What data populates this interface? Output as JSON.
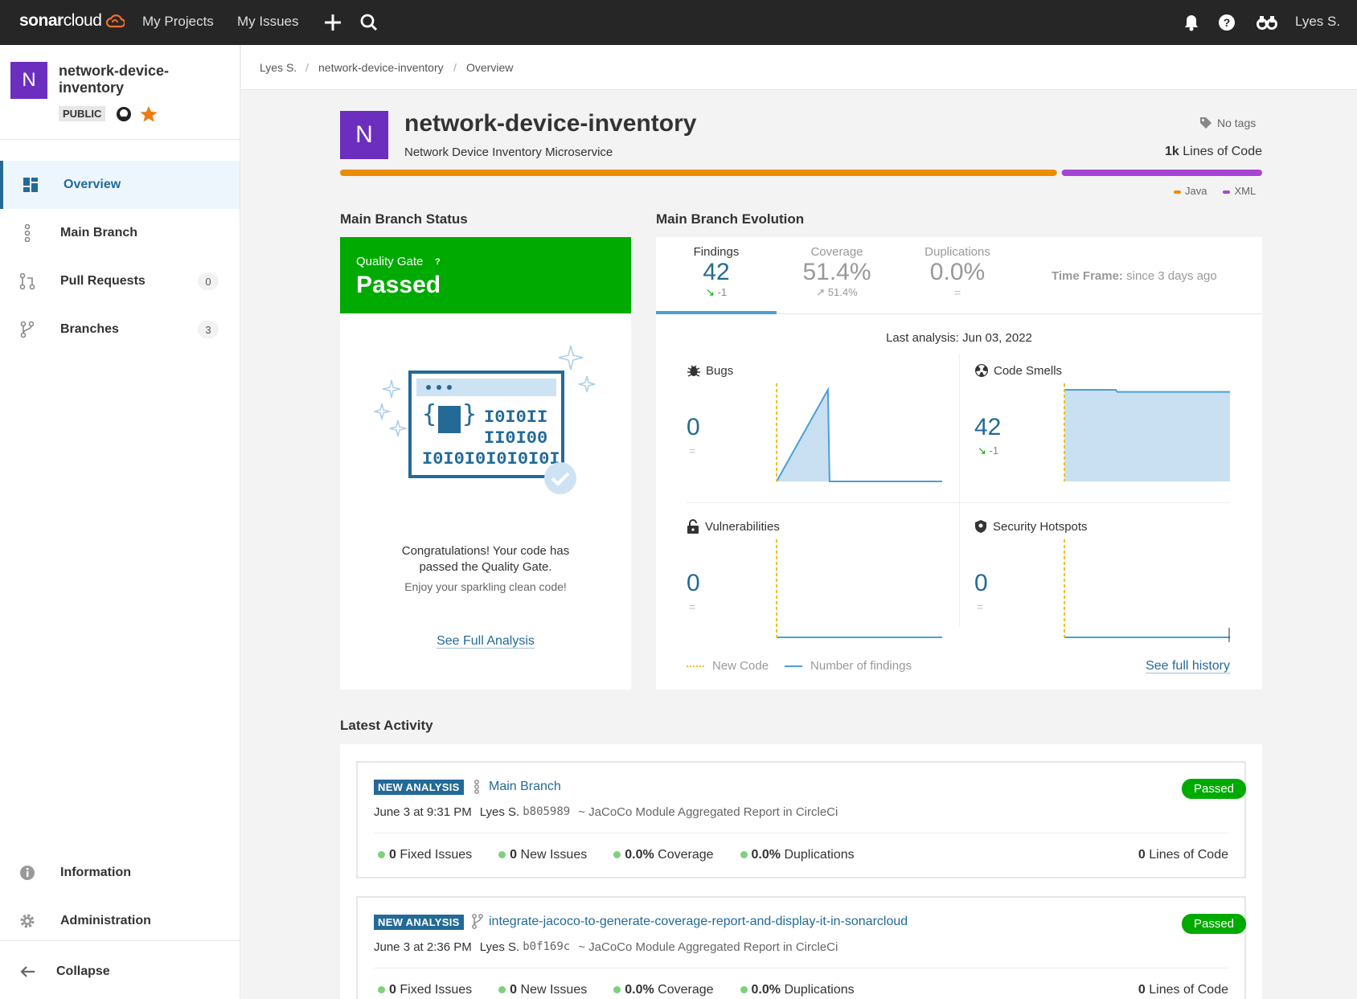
{
  "topbar": {
    "logo_prefix": "sonar",
    "logo_suffix": "cloud",
    "my_projects": "My Projects",
    "my_issues": "My Issues",
    "user": "Lyes S."
  },
  "sidebar": {
    "project_initial": "N",
    "project_name_line1": "network-device-",
    "project_name_line2": "inventory",
    "visibility": "PUBLIC",
    "items": [
      {
        "label": "Overview"
      },
      {
        "label": "Main Branch"
      },
      {
        "label": "Pull Requests",
        "count": "0"
      },
      {
        "label": "Branches",
        "count": "3"
      }
    ],
    "information": "Information",
    "administration": "Administration",
    "collapse": "Collapse"
  },
  "breadcrumb": {
    "user": "Lyes S.",
    "project": "network-device-inventory",
    "page": "Overview",
    "sep": "/"
  },
  "header": {
    "initial": "N",
    "title": "network-device-inventory",
    "description": "Network Device Inventory Microservice",
    "tags": "No tags",
    "loc_value": "1k",
    "loc_label": "Lines of Code",
    "languages": [
      {
        "name": "Java",
        "color": "#ed8c00",
        "share": 0.78
      },
      {
        "name": "XML",
        "color": "#a645d5",
        "share": 0.22
      }
    ]
  },
  "status": {
    "section_title": "Main Branch Status",
    "gate_label": "Quality Gate",
    "gate_help": "?",
    "gate_status": "Passed",
    "congrats_line1": "Congratulations! Your code has",
    "congrats_line2": "passed the Quality Gate.",
    "enjoy": "Enjoy your sparkling clean code!",
    "full_analysis": "See Full Analysis",
    "illustration_binary": [
      "I0I0II",
      "II0I00",
      "I0I0I0I0I0I0I"
    ]
  },
  "evolution": {
    "section_title": "Main Branch Evolution",
    "tabs": [
      {
        "label": "Findings",
        "value": "42",
        "delta": "-1"
      },
      {
        "label": "Coverage",
        "value": "51.4%",
        "delta": "51.4%"
      },
      {
        "label": "Duplications",
        "value": "0.0%",
        "delta": "="
      }
    ],
    "timeframe_label": "Time Frame:",
    "timeframe_value": "since 3 days ago",
    "last_analysis": "Last analysis: Jun 03, 2022",
    "metrics": [
      {
        "label": "Bugs",
        "value": "0",
        "delta": "=",
        "series": [
          0,
          1,
          0,
          0
        ]
      },
      {
        "label": "Code Smells",
        "value": "42",
        "delta": "-1",
        "series": [
          43,
          43,
          42,
          42
        ]
      },
      {
        "label": "Vulnerabilities",
        "value": "0",
        "delta": "=",
        "series": [
          0,
          0,
          0,
          0
        ]
      },
      {
        "label": "Security Hotspots",
        "value": "0",
        "delta": "=",
        "series": [
          0,
          0,
          0,
          0
        ]
      }
    ],
    "legend_new_code": "New Code",
    "legend_findings": "Number of findings",
    "full_history": "See full history"
  },
  "activity": {
    "section_title": "Latest Activity",
    "entries": [
      {
        "tag": "NEW ANALYSIS",
        "branch": "Main Branch",
        "status": "Passed",
        "date": "June 3 at 9:31 PM",
        "author": "Lyes S.",
        "hash": "b805989",
        "message": "~ JaCoCo Module Aggregated Report in CircleCi",
        "fixed": "0",
        "fixed_label": "Fixed Issues",
        "new": "0",
        "new_label": "New Issues",
        "coverage": "0.0%",
        "coverage_label": "Coverage",
        "dup": "0.0%",
        "dup_label": "Duplications",
        "loc": "0",
        "loc_label": "Lines of Code"
      },
      {
        "tag": "NEW ANALYSIS",
        "branch": "integrate-jacoco-to-generate-coverage-report-and-display-it-in-sonarcloud",
        "status": "Passed",
        "date": "June 3 at 2:36 PM",
        "author": "Lyes S.",
        "hash": "b0f169c",
        "message": "~ JaCoCo Module Aggregated Report in CircleCi",
        "fixed": "0",
        "fixed_label": "Fixed Issues",
        "new": "0",
        "new_label": "New Issues",
        "coverage": "0.0%",
        "coverage_label": "Coverage",
        "dup": "0.0%",
        "dup_label": "Duplications",
        "loc": "0",
        "loc_label": "Lines of Code"
      }
    ]
  }
}
